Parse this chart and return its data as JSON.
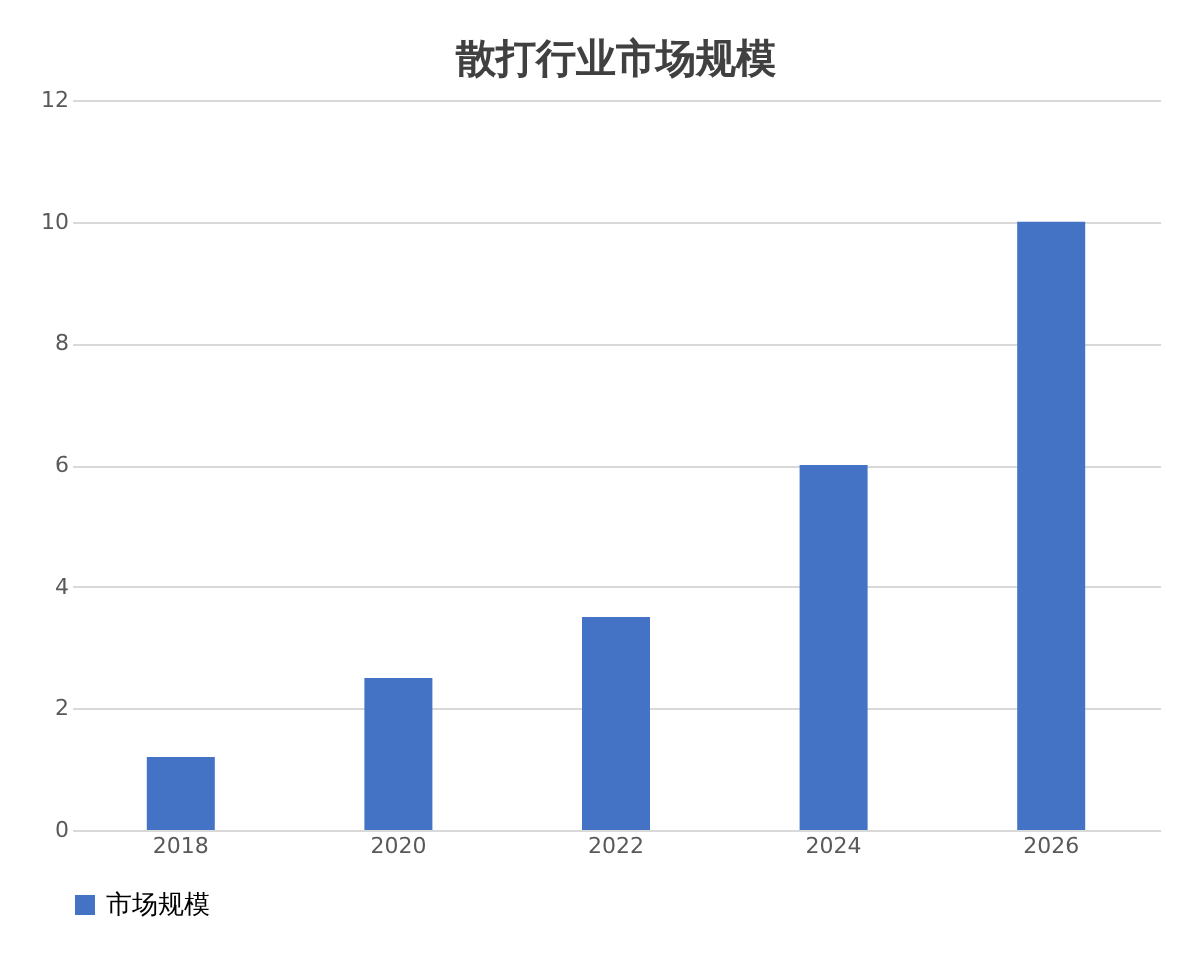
{
  "chart_data": {
    "type": "bar",
    "title": "散打行业市场规模",
    "categories": [
      "2018",
      "2020",
      "2022",
      "2024",
      "2026"
    ],
    "series": [
      {
        "name": "市场规模",
        "color": "#4472c4",
        "values": [
          1.2,
          2.5,
          3.5,
          6,
          10
        ]
      }
    ],
    "ylim": [
      0,
      12
    ],
    "yticks": [
      0,
      2,
      4,
      6,
      8,
      10,
      12
    ],
    "grid": "y",
    "legend": "bottom"
  }
}
